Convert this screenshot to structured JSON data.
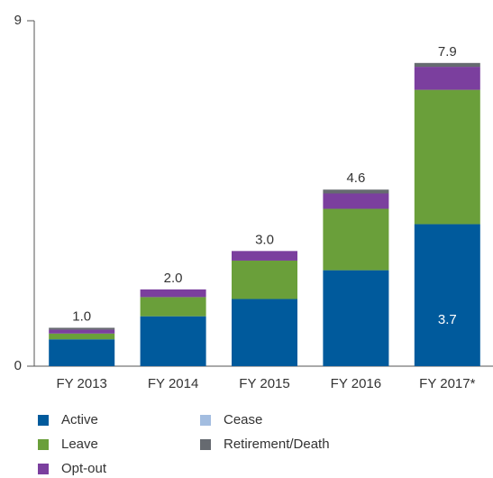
{
  "chart_data": {
    "type": "stacked_bar",
    "categories": [
      "FY 2013",
      "FY 2014",
      "FY 2015",
      "FY 2016",
      "FY 2017*"
    ],
    "series": [
      {
        "name": "Active",
        "color": "#005a9c",
        "values": [
          0.7,
          1.3,
          1.75,
          2.5,
          3.7
        ],
        "value_labels": [
          null,
          null,
          null,
          null,
          "3.7"
        ]
      },
      {
        "name": "Leave",
        "color": "#6a9f3a",
        "values": [
          0.15,
          0.5,
          1.0,
          1.6,
          3.5
        ]
      },
      {
        "name": "Opt-out",
        "color": "#7b3f9e",
        "values": [
          0.1,
          0.2,
          0.25,
          0.4,
          0.6
        ]
      },
      {
        "name": "Cease",
        "color": "#a3bde0",
        "values": [
          0,
          0,
          0,
          0,
          0
        ]
      },
      {
        "name": "Retirement/Death",
        "color": "#666a70",
        "values": [
          0.05,
          0,
          0,
          0.1,
          0.1
        ]
      }
    ],
    "totals": [
      1.0,
      2.0,
      3.0,
      4.6,
      7.9
    ],
    "total_labels": [
      "1.0",
      "2.0",
      "3.0",
      "4.6",
      "7.9"
    ],
    "ylim": [
      0,
      9
    ],
    "yticks": [
      0,
      9
    ],
    "grid": false
  }
}
